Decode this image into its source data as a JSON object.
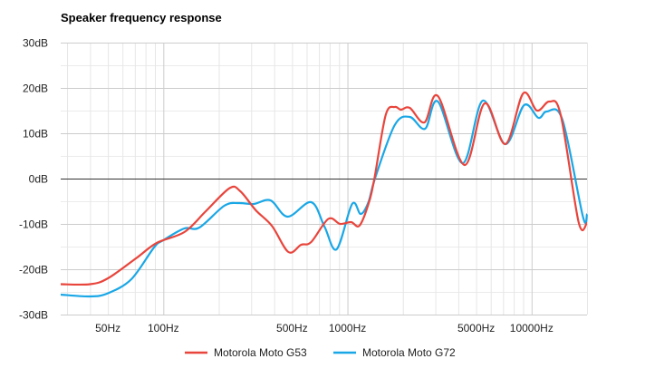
{
  "chart_data": {
    "type": "line",
    "title": "Speaker frequency response",
    "xlabel": "",
    "ylabel": "",
    "x_scale": "log",
    "xlim": [
      27.7,
      20000
    ],
    "ylim": [
      -30,
      30
    ],
    "grid": true,
    "legend_position": "bottom",
    "y_ticks": [
      {
        "value": 30,
        "label": "30dB"
      },
      {
        "value": 20,
        "label": "20dB"
      },
      {
        "value": 10,
        "label": "10dB"
      },
      {
        "value": 0,
        "label": "0dB"
      },
      {
        "value": -10,
        "label": "-10dB"
      },
      {
        "value": -20,
        "label": "-20dB"
      },
      {
        "value": -30,
        "label": "-30dB"
      }
    ],
    "x_ticks": [
      {
        "value": 50,
        "label": "50Hz"
      },
      {
        "value": 100,
        "label": "100Hz"
      },
      {
        "value": 500,
        "label": "500Hz"
      },
      {
        "value": 1000,
        "label": "1000Hz"
      },
      {
        "value": 5000,
        "label": "5000Hz"
      },
      {
        "value": 10000,
        "label": "10000Hz"
      }
    ],
    "x_gridlines": [
      30,
      40,
      50,
      60,
      70,
      80,
      90,
      100,
      200,
      300,
      400,
      500,
      600,
      700,
      800,
      900,
      1000,
      2000,
      3000,
      4000,
      5000,
      6000,
      7000,
      8000,
      9000,
      10000,
      20000
    ],
    "y_minor_gridlines": [
      25,
      15,
      5,
      -5,
      -15,
      -25
    ],
    "series": [
      {
        "name": "Motorola Moto G53",
        "color": "#e8453c",
        "points": [
          [
            27.7,
            -23.3
          ],
          [
            40,
            -23.3
          ],
          [
            50,
            -22
          ],
          [
            71,
            -17.6
          ],
          [
            92,
            -14.2
          ],
          [
            130,
            -11.8
          ],
          [
            170,
            -7.2
          ],
          [
            229,
            -2.1
          ],
          [
            262,
            -2.8
          ],
          [
            318,
            -7
          ],
          [
            390,
            -10.5
          ],
          [
            478,
            -16.2
          ],
          [
            560,
            -14.6
          ],
          [
            635,
            -14
          ],
          [
            787,
            -8.9
          ],
          [
            912,
            -10
          ],
          [
            1045,
            -9.6
          ],
          [
            1160,
            -10.4
          ],
          [
            1300,
            -5.6
          ],
          [
            1400,
            0
          ],
          [
            1612,
            14
          ],
          [
            1805,
            15.8
          ],
          [
            1950,
            15.2
          ],
          [
            2180,
            15.6
          ],
          [
            2620,
            12.4
          ],
          [
            3100,
            18.2
          ],
          [
            4320,
            3
          ],
          [
            5560,
            16.6
          ],
          [
            7200,
            7.6
          ],
          [
            9000,
            18.8
          ],
          [
            10700,
            15
          ],
          [
            12500,
            17
          ],
          [
            14400,
            14
          ],
          [
            18000,
            -9.6
          ],
          [
            20000,
            -9.8
          ]
        ]
      },
      {
        "name": "Motorola Moto G72",
        "color": "#1aa7e6",
        "points": [
          [
            27.7,
            -25.6
          ],
          [
            40,
            -26
          ],
          [
            50,
            -25.3
          ],
          [
            67,
            -22.2
          ],
          [
            89,
            -15.2
          ],
          [
            100,
            -13.6
          ],
          [
            130,
            -11
          ],
          [
            157,
            -10.8
          ],
          [
            214,
            -6
          ],
          [
            256,
            -5.4
          ],
          [
            310,
            -5.6
          ],
          [
            382,
            -4.8
          ],
          [
            473,
            -8.4
          ],
          [
            635,
            -5.2
          ],
          [
            750,
            -10.6
          ],
          [
            873,
            -15.6
          ],
          [
            1060,
            -5.6
          ],
          [
            1180,
            -7.8
          ],
          [
            1300,
            -5.2
          ],
          [
            1410,
            0
          ],
          [
            1805,
            11.8
          ],
          [
            2180,
            13.6
          ],
          [
            2640,
            11
          ],
          [
            3100,
            17
          ],
          [
            4220,
            3.4
          ],
          [
            5430,
            17.2
          ],
          [
            7200,
            7.6
          ],
          [
            9100,
            16.2
          ],
          [
            10900,
            13.4
          ],
          [
            12100,
            14.8
          ],
          [
            14700,
            13
          ],
          [
            19000,
            -8.4
          ],
          [
            20000,
            -7.8
          ]
        ]
      }
    ]
  }
}
